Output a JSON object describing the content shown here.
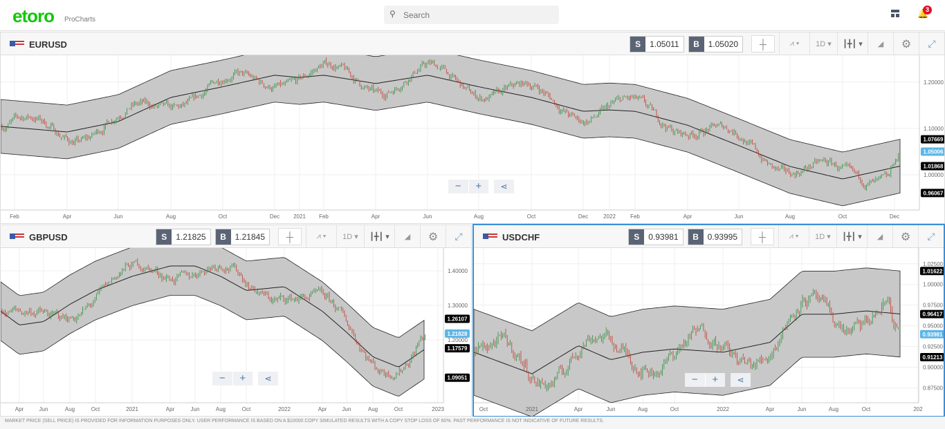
{
  "header": {
    "logo": "etoro",
    "logo_sub": "ProCharts",
    "search_placeholder": "Search",
    "notifications_count": "3",
    "icons": [
      "search-icon",
      "layout-icon",
      "bell-icon"
    ]
  },
  "colors": {
    "brand": "#16c60c",
    "band_fill": "#c8c8c8",
    "up": "#2e8b3c",
    "down": "#c0392b",
    "last_price": "#5bb5e8",
    "active_border": "#3a8fd6"
  },
  "panels": [
    {
      "symbol": "EURUSD",
      "sell_label": "S",
      "sell": "1.05011",
      "buy_label": "B",
      "buy": "1.05020",
      "interval": "1D",
      "active": false,
      "chart_data": {
        "type": "candlestick",
        "overlay": "bands (upper / middle / lower)",
        "x_ticks": [
          "Feb",
          "Apr",
          "Jun",
          "Aug",
          "Oct",
          "Dec",
          "2021",
          "Feb",
          "Apr",
          "Jun",
          "Aug",
          "Oct",
          "Dec",
          "2022",
          "Feb",
          "Apr",
          "Jun",
          "Aug",
          "Oct",
          "Dec"
        ],
        "y_ticks": [
          "1.20000",
          "1.10000",
          "1.00000"
        ],
        "ylim": [
          0.924,
          1.258
        ],
        "middle": [
          1.1045,
          1.0925,
          1.115,
          1.167,
          1.19,
          1.215,
          1.21,
          1.215,
          1.197,
          1.215,
          1.19,
          1.167,
          1.137,
          1.14,
          1.137,
          1.107,
          1.063,
          1.018,
          0.991,
          1.0187
        ],
        "band_halfwidth": 0.058,
        "labels": {
          "upper": "1.07669",
          "last": "1.05006",
          "middle": "1.01868",
          "lower": "0.96067"
        }
      }
    },
    {
      "symbol": "GBPUSD",
      "sell_label": "S",
      "sell": "1.21825",
      "buy_label": "B",
      "buy": "1.21845",
      "interval": "1D",
      "active": false,
      "chart_data": {
        "type": "candlestick",
        "overlay": "bands (upper / middle / lower)",
        "x_ticks": [
          "Apr",
          "Jun",
          "Aug",
          "Oct",
          "2021",
          "Apr",
          "Jun",
          "Aug",
          "Oct",
          "2022",
          "Apr",
          "Jun",
          "Aug",
          "Oct",
          "2023"
        ],
        "y_ticks": [
          "1.40000",
          "1.30000",
          "1.20000"
        ],
        "ylim": [
          1.018,
          1.466
        ],
        "middle": [
          1.283,
          1.243,
          1.253,
          1.303,
          1.343,
          1.384,
          1.414,
          1.414,
          1.384,
          1.343,
          1.354,
          1.283,
          1.222,
          1.151,
          1.121,
          1.1758
        ],
        "band_halfwidth": 0.085,
        "labels": {
          "upper": "1.26107",
          "last": "1.21828",
          "middle": "1.17579",
          "lower": "1.09051"
        }
      }
    },
    {
      "symbol": "USDCHF",
      "sell_label": "S",
      "sell": "0.93981",
      "buy_label": "B",
      "buy": "0.93995",
      "interval": "1D",
      "active": true,
      "chart_data": {
        "type": "candlestick",
        "overlay": "bands (upper / middle / lower)",
        "x_ticks": [
          "Oct",
          "2021",
          "Apr",
          "Jun",
          "Aug",
          "Oct",
          "2022",
          "Apr",
          "Jun",
          "Aug",
          "Oct",
          "202"
        ],
        "y_ticks": [
          "1.02500",
          "1.00000",
          "0.97500",
          "0.95000",
          "0.92500",
          "0.90000",
          "0.87500"
        ],
        "ylim": [
          0.857,
          1.044
        ],
        "middle": [
          0.918,
          0.892,
          0.926,
          0.909,
          0.918,
          0.922,
          0.918,
          0.93,
          0.964,
          0.964,
          0.968,
          0.9642
        ],
        "band_halfwidth": 0.052,
        "labels": {
          "upper": "1.01622",
          "last": "0.93981",
          "middle": "0.96417",
          "lower": "0.91213"
        }
      }
    }
  ],
  "zoom_controls": {
    "minus": "−",
    "plus": "+"
  },
  "footer": "MARKET PRICE (SELL PRICE) IS PROVIDED FOR INFORMATION PURPOSES ONLY. USER PERFORMANCE IS BASED ON A $10000 COPY SIMULATED RESULTS WITH A COPY STOP LOSS OF 60%. PAST PERFORMANCE IS NOT INDICATIVE OF FUTURE RESULTS."
}
